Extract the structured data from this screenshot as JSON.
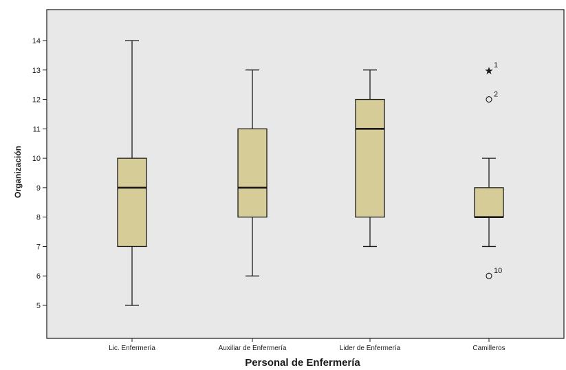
{
  "chart_data": {
    "type": "boxplot",
    "xlabel": "Personal de Enfermería",
    "ylabel": "Organización",
    "ylim": [
      4,
      15
    ],
    "yticks": [
      5,
      6,
      7,
      8,
      9,
      10,
      11,
      12,
      13,
      14
    ],
    "grid": false,
    "colors": {
      "plot_background": "#e8e8e8",
      "box_fill": "#d6cc98",
      "line": "#1a1a1a"
    },
    "categories": [
      "Lic. Enfermería",
      "Auxiliar de Enfermería",
      "Lider de Enfermería",
      "Camilleros"
    ],
    "boxes": [
      {
        "category": "Lic. Enfermería",
        "whisker_low": 5,
        "q1": 7,
        "median": 9,
        "q3": 10,
        "whisker_high": 14,
        "outliers": []
      },
      {
        "category": "Auxiliar de Enfermería",
        "whisker_low": 6,
        "q1": 8,
        "median": 9,
        "q3": 11,
        "whisker_high": 13,
        "outliers": []
      },
      {
        "category": "Lider de Enfermería",
        "whisker_low": 7,
        "q1": 8,
        "median": 11,
        "q3": 12,
        "whisker_high": 13,
        "outliers": []
      },
      {
        "category": "Camilleros",
        "whisker_low": 7,
        "q1": 8,
        "median": 8,
        "q3": 9,
        "whisker_high": 10,
        "outliers": [
          {
            "value": 13,
            "marker": "star",
            "label": "1"
          },
          {
            "value": 12,
            "marker": "circle",
            "label": "2"
          },
          {
            "value": 6,
            "marker": "circle",
            "label": "10"
          }
        ]
      }
    ]
  }
}
